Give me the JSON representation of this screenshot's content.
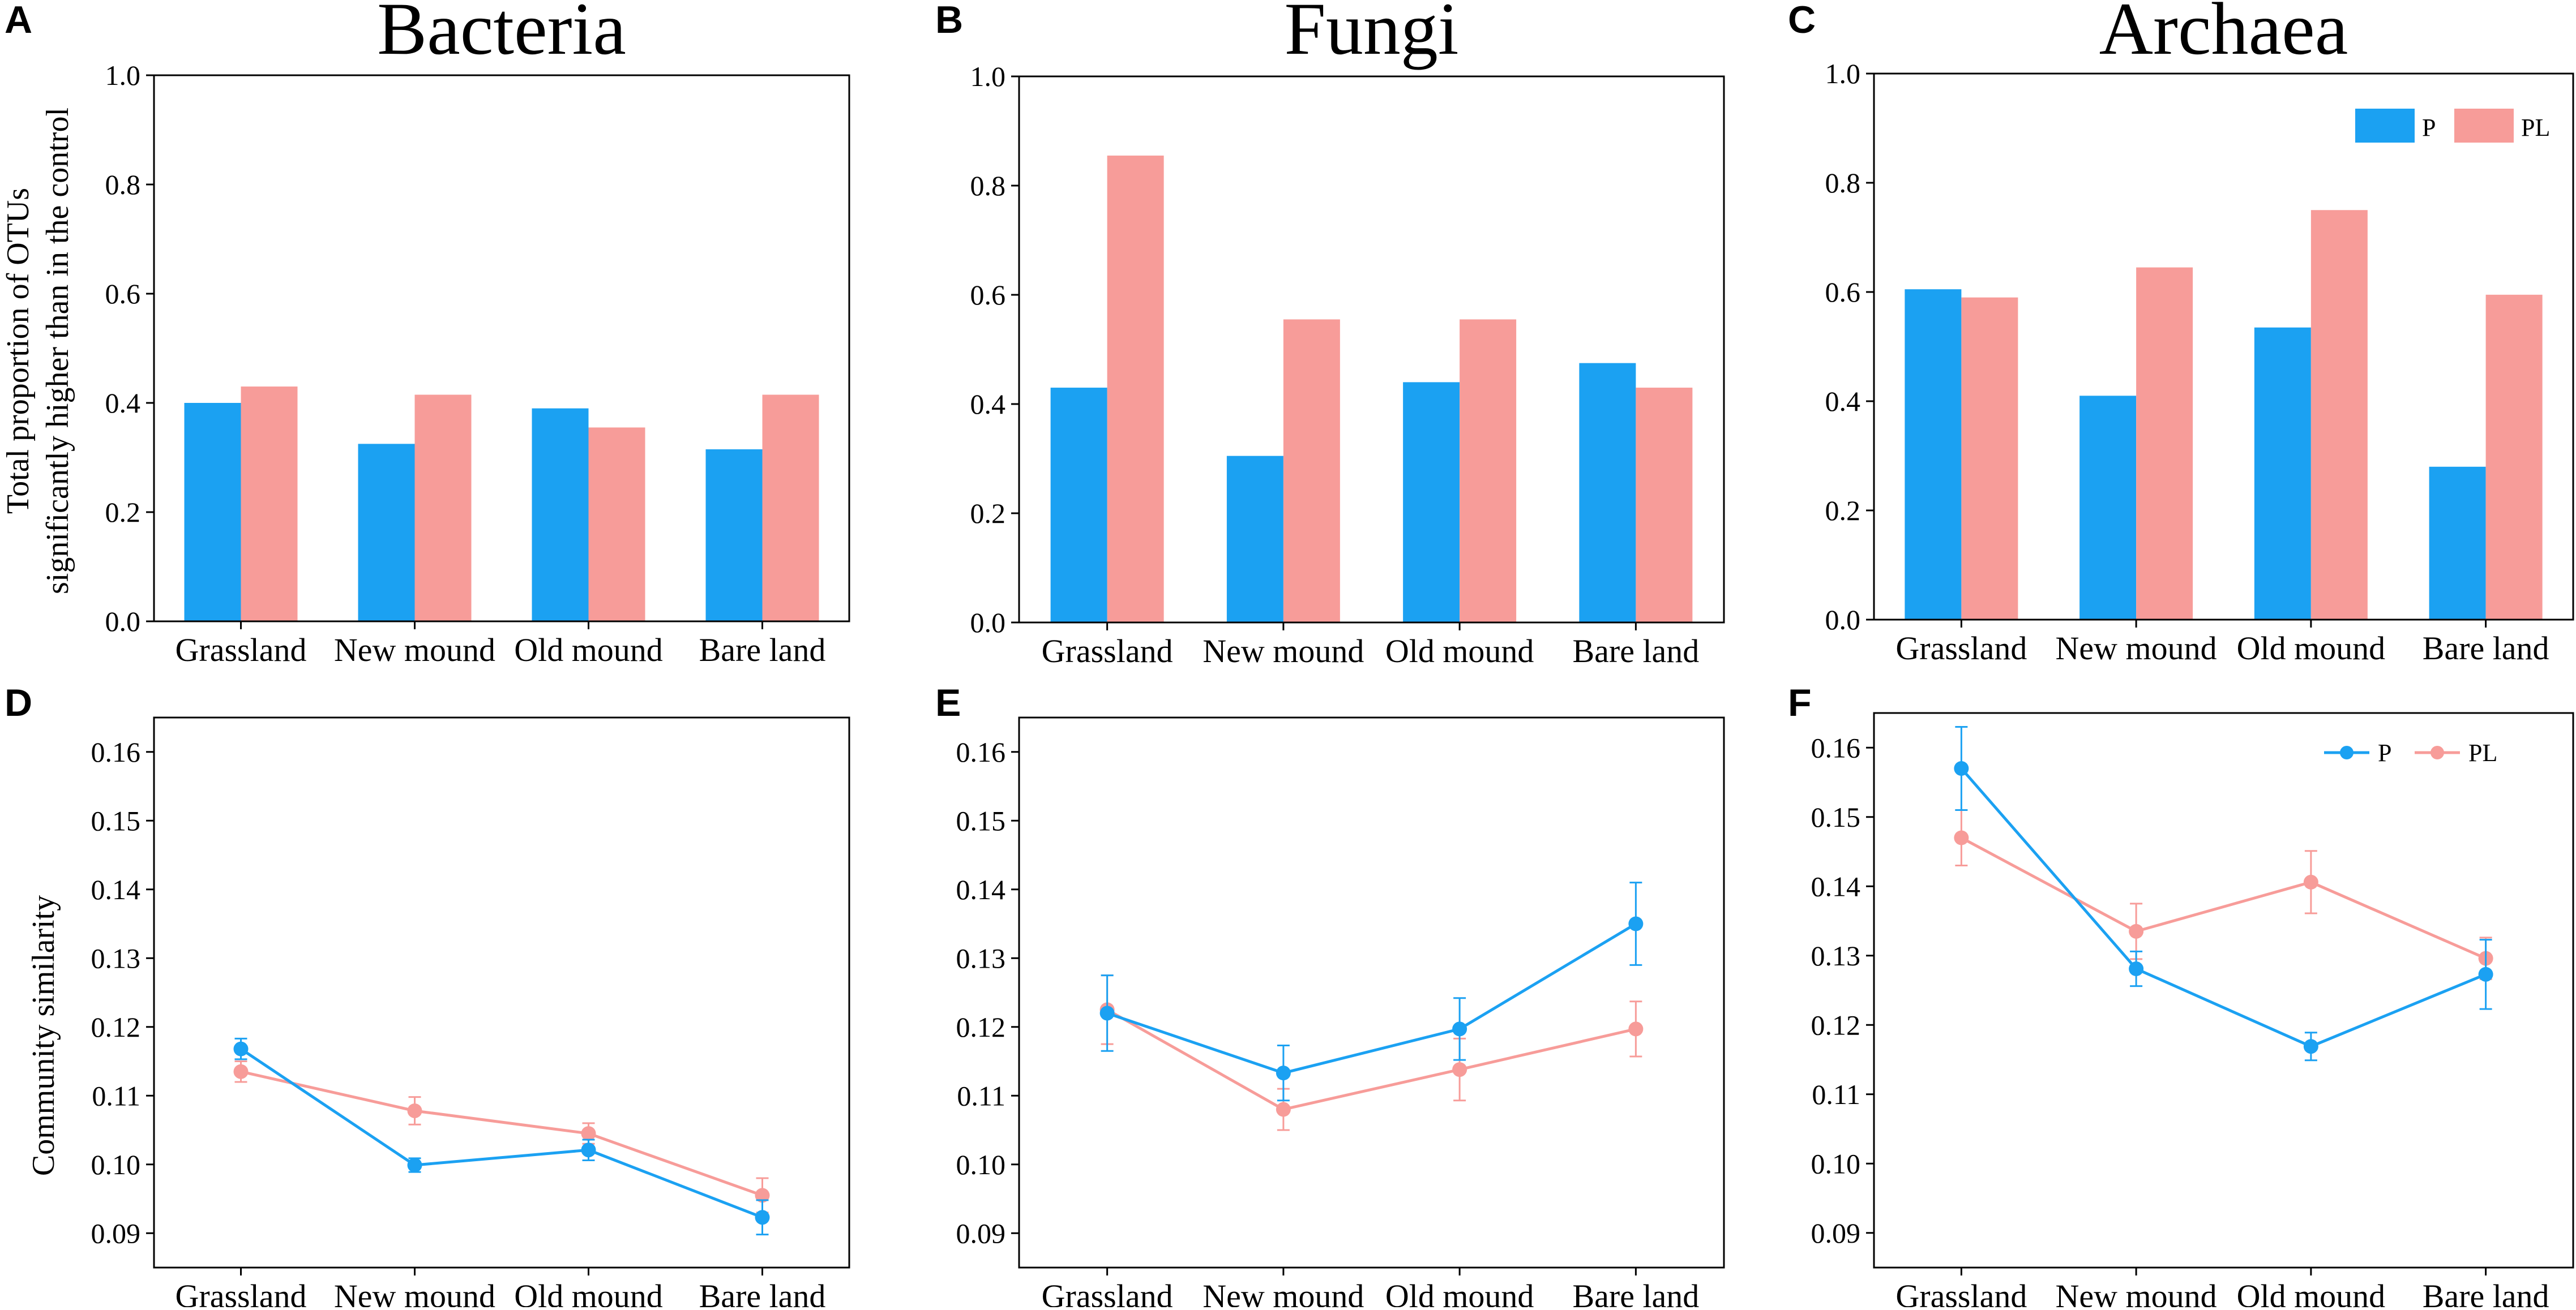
{
  "colors": {
    "P": "#1ba1f2",
    "PL": "#f79c99",
    "axis": "#000000"
  },
  "legend_labels": {
    "P": "P",
    "PL": "PL"
  },
  "row_ylabels": {
    "top_line1": "Total proportion of OTUs",
    "top_line2": "significantly higher than in the control",
    "bottom": "Community similarity"
  },
  "chart_data": [
    {
      "id": "A",
      "panel_label": "A",
      "type": "bar",
      "title": "Bacteria",
      "categories": [
        "Grassland",
        "New mound",
        "Old mound",
        "Bare land"
      ],
      "ylim": [
        0,
        1.0
      ],
      "yticks": [
        "0.0",
        "0.2",
        "0.4",
        "0.6",
        "0.8",
        "1.0"
      ],
      "legend": false,
      "series": [
        {
          "name": "P",
          "values": [
            0.4,
            0.325,
            0.39,
            0.315
          ]
        },
        {
          "name": "PL",
          "values": [
            0.43,
            0.415,
            0.355,
            0.415
          ]
        }
      ]
    },
    {
      "id": "B",
      "panel_label": "B",
      "type": "bar",
      "title": "Fungi",
      "categories": [
        "Grassland",
        "New mound",
        "Old mound",
        "Bare land"
      ],
      "ylim": [
        0,
        1.0
      ],
      "yticks": [
        "0.0",
        "0.2",
        "0.4",
        "0.6",
        "0.8",
        "1.0"
      ],
      "legend": false,
      "series": [
        {
          "name": "P",
          "values": [
            0.43,
            0.305,
            0.44,
            0.475
          ]
        },
        {
          "name": "PL",
          "values": [
            0.855,
            0.555,
            0.555,
            0.43
          ]
        }
      ]
    },
    {
      "id": "C",
      "panel_label": "C",
      "type": "bar",
      "title": "Archaea",
      "categories": [
        "Grassland",
        "New mound",
        "Old mound",
        "Bare land"
      ],
      "ylim": [
        0,
        1.0
      ],
      "yticks": [
        "0.0",
        "0.2",
        "0.4",
        "0.6",
        "0.8",
        "1.0"
      ],
      "legend": true,
      "series": [
        {
          "name": "P",
          "values": [
            0.605,
            0.41,
            0.535,
            0.28
          ]
        },
        {
          "name": "PL",
          "values": [
            0.59,
            0.645,
            0.75,
            0.595
          ]
        }
      ]
    },
    {
      "id": "D",
      "panel_label": "D",
      "type": "line",
      "title": "",
      "categories": [
        "Grassland",
        "New mound",
        "Old mound",
        "Bare land"
      ],
      "ylim": [
        0.085,
        0.165
      ],
      "yticks": [
        "0.09",
        "0.10",
        "0.11",
        "0.12",
        "0.13",
        "0.14",
        "0.15",
        "0.16"
      ],
      "legend": false,
      "series": [
        {
          "name": "P",
          "values": [
            0.1168,
            0.0999,
            0.1021,
            0.0923
          ],
          "errors": [
            0.0015,
            0.001,
            0.0015,
            0.0025
          ]
        },
        {
          "name": "PL",
          "values": [
            0.1135,
            0.1078,
            0.1045,
            0.0955
          ],
          "errors": [
            0.0015,
            0.002,
            0.0015,
            0.0025
          ]
        }
      ]
    },
    {
      "id": "E",
      "panel_label": "E",
      "type": "line",
      "title": "",
      "categories": [
        "Grassland",
        "New mound",
        "Old mound",
        "Bare land"
      ],
      "ylim": [
        0.085,
        0.165
      ],
      "yticks": [
        "0.09",
        "0.10",
        "0.11",
        "0.12",
        "0.13",
        "0.14",
        "0.15",
        "0.16"
      ],
      "legend": false,
      "series": [
        {
          "name": "P",
          "values": [
            0.122,
            0.1133,
            0.1197,
            0.135
          ],
          "errors": [
            0.0055,
            0.004,
            0.0045,
            0.006
          ]
        },
        {
          "name": "PL",
          "values": [
            0.1225,
            0.108,
            0.1138,
            0.1197
          ],
          "errors": [
            0.005,
            0.003,
            0.0045,
            0.004
          ]
        }
      ]
    },
    {
      "id": "F",
      "panel_label": "F",
      "type": "line",
      "title": "",
      "categories": [
        "Grassland",
        "New mound",
        "Old mound",
        "Bare land"
      ],
      "ylim": [
        0.085,
        0.165
      ],
      "yticks": [
        "0.09",
        "0.10",
        "0.11",
        "0.12",
        "0.13",
        "0.14",
        "0.15",
        "0.16"
      ],
      "legend": true,
      "series": [
        {
          "name": "P",
          "values": [
            0.157,
            0.1281,
            0.1169,
            0.1273
          ],
          "errors": [
            0.006,
            0.0025,
            0.002,
            0.005
          ]
        },
        {
          "name": "PL",
          "values": [
            0.147,
            0.1335,
            0.1406,
            0.1296
          ],
          "errors": [
            0.004,
            0.004,
            0.0045,
            0.003
          ]
        }
      ]
    }
  ]
}
